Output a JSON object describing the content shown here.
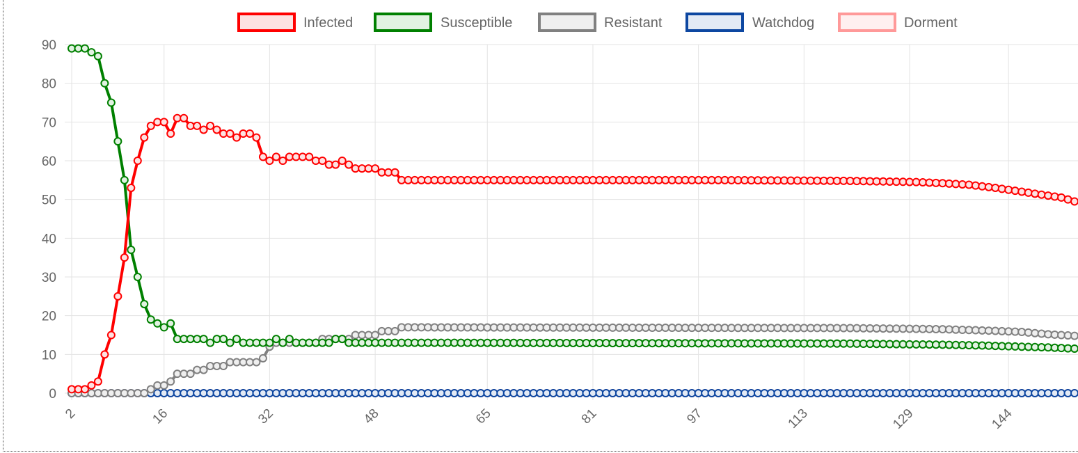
{
  "chart_data": {
    "type": "line",
    "title": "",
    "xlabel": "",
    "ylabel": "",
    "ylim": [
      0,
      90
    ],
    "yticks": [
      0,
      10,
      20,
      30,
      40,
      50,
      60,
      70,
      80,
      90
    ],
    "xtick_labels": [
      "2",
      "16",
      "32",
      "48",
      "65",
      "81",
      "97",
      "113",
      "129",
      "144"
    ],
    "x_start": 2,
    "x_end": 154,
    "grid": true,
    "legend_position": "top",
    "series": [
      {
        "name": "Infected",
        "color": "#ff0000",
        "fill": "#fde2e2",
        "points": [
          [
            2,
            1
          ],
          [
            3,
            1
          ],
          [
            4,
            1
          ],
          [
            5,
            2
          ],
          [
            6,
            3
          ],
          [
            7,
            10
          ],
          [
            8,
            15
          ],
          [
            9,
            25
          ],
          [
            10,
            35
          ],
          [
            11,
            53
          ],
          [
            12,
            60
          ],
          [
            13,
            66
          ],
          [
            14,
            69
          ],
          [
            15,
            70
          ],
          [
            16,
            70
          ],
          [
            17,
            67
          ],
          [
            18,
            71
          ],
          [
            19,
            71
          ],
          [
            20,
            69
          ],
          [
            21,
            69
          ],
          [
            22,
            68
          ],
          [
            23,
            69
          ],
          [
            24,
            68
          ],
          [
            25,
            67
          ],
          [
            26,
            67
          ],
          [
            27,
            66
          ],
          [
            28,
            67
          ],
          [
            29,
            67
          ],
          [
            30,
            66
          ],
          [
            31,
            61
          ],
          [
            32,
            60
          ],
          [
            33,
            61
          ],
          [
            34,
            60
          ],
          [
            35,
            61
          ],
          [
            36,
            61
          ],
          [
            37,
            61
          ],
          [
            38,
            61
          ],
          [
            39,
            60
          ],
          [
            40,
            60
          ],
          [
            41,
            59
          ],
          [
            42,
            59
          ],
          [
            43,
            60
          ],
          [
            44,
            59
          ],
          [
            45,
            58
          ],
          [
            46,
            58
          ],
          [
            47,
            58
          ],
          [
            48,
            58
          ],
          [
            49,
            57
          ],
          [
            50,
            57
          ],
          [
            51,
            57
          ],
          [
            52,
            55
          ],
          [
            100,
            55
          ],
          [
            120,
            54.8
          ],
          [
            130,
            54.5
          ],
          [
            134,
            54.2
          ],
          [
            138,
            53.8
          ],
          [
            142,
            53
          ],
          [
            146,
            52
          ],
          [
            150,
            51
          ],
          [
            152,
            50.5
          ],
          [
            154,
            49.5
          ]
        ]
      },
      {
        "name": "Susceptible",
        "color": "#008000",
        "fill": "#e2f2e2",
        "points": [
          [
            2,
            89
          ],
          [
            3,
            89
          ],
          [
            4,
            89
          ],
          [
            5,
            88
          ],
          [
            6,
            87
          ],
          [
            7,
            80
          ],
          [
            8,
            75
          ],
          [
            9,
            65
          ],
          [
            10,
            55
          ],
          [
            11,
            37
          ],
          [
            12,
            30
          ],
          [
            13,
            23
          ],
          [
            14,
            19
          ],
          [
            15,
            18
          ],
          [
            16,
            17
          ],
          [
            17,
            18
          ],
          [
            18,
            14
          ],
          [
            19,
            14
          ],
          [
            20,
            14
          ],
          [
            21,
            14
          ],
          [
            22,
            14
          ],
          [
            23,
            13
          ],
          [
            24,
            14
          ],
          [
            25,
            14
          ],
          [
            26,
            13
          ],
          [
            27,
            14
          ],
          [
            28,
            13
          ],
          [
            29,
            13
          ],
          [
            30,
            13
          ],
          [
            31,
            13
          ],
          [
            32,
            13
          ],
          [
            33,
            14
          ],
          [
            34,
            13
          ],
          [
            35,
            14
          ],
          [
            36,
            13
          ],
          [
            37,
            13
          ],
          [
            38,
            13
          ],
          [
            39,
            13
          ],
          [
            40,
            13
          ],
          [
            41,
            13
          ],
          [
            42,
            14
          ],
          [
            43,
            14
          ],
          [
            44,
            13
          ],
          [
            60,
            13
          ],
          [
            120,
            12.8
          ],
          [
            134,
            12.5
          ],
          [
            140,
            12.3
          ],
          [
            146,
            12
          ],
          [
            150,
            11.8
          ],
          [
            154,
            11.5
          ]
        ]
      },
      {
        "name": "Resistant",
        "color": "#808080",
        "fill": "#efefef",
        "points": [
          [
            2,
            0
          ],
          [
            3,
            0
          ],
          [
            4,
            0
          ],
          [
            5,
            0
          ],
          [
            6,
            0
          ],
          [
            7,
            0
          ],
          [
            8,
            0
          ],
          [
            9,
            0
          ],
          [
            10,
            0
          ],
          [
            11,
            0
          ],
          [
            12,
            0
          ],
          [
            13,
            0
          ],
          [
            14,
            1
          ],
          [
            15,
            2
          ],
          [
            16,
            2
          ],
          [
            17,
            3
          ],
          [
            18,
            5
          ],
          [
            19,
            5
          ],
          [
            20,
            5
          ],
          [
            21,
            6
          ],
          [
            22,
            6
          ],
          [
            23,
            7
          ],
          [
            24,
            7
          ],
          [
            25,
            7
          ],
          [
            26,
            8
          ],
          [
            27,
            8
          ],
          [
            28,
            8
          ],
          [
            29,
            8
          ],
          [
            30,
            8
          ],
          [
            31,
            9
          ],
          [
            32,
            12
          ],
          [
            33,
            13
          ],
          [
            34,
            13
          ],
          [
            35,
            13
          ],
          [
            36,
            13
          ],
          [
            37,
            13
          ],
          [
            38,
            13
          ],
          [
            39,
            13
          ],
          [
            40,
            14
          ],
          [
            41,
            14
          ],
          [
            42,
            14
          ],
          [
            43,
            14
          ],
          [
            44,
            14
          ],
          [
            45,
            15
          ],
          [
            46,
            15
          ],
          [
            47,
            15
          ],
          [
            48,
            15
          ],
          [
            49,
            16
          ],
          [
            50,
            16
          ],
          [
            51,
            16
          ],
          [
            52,
            17
          ],
          [
            120,
            16.8
          ],
          [
            134,
            16.5
          ],
          [
            140,
            16.2
          ],
          [
            146,
            15.8
          ],
          [
            150,
            15.2
          ],
          [
            154,
            14.8
          ]
        ]
      },
      {
        "name": "Watchdog",
        "color": "#0d47a1",
        "fill": "#e3eaf5",
        "points": [
          [
            2,
            0
          ],
          [
            154,
            0
          ]
        ]
      },
      {
        "name": "Dorment",
        "color": "#ff9999",
        "fill": "#fff0f0",
        "points": [
          [
            2,
            0
          ],
          [
            154,
            0
          ]
        ]
      }
    ]
  }
}
